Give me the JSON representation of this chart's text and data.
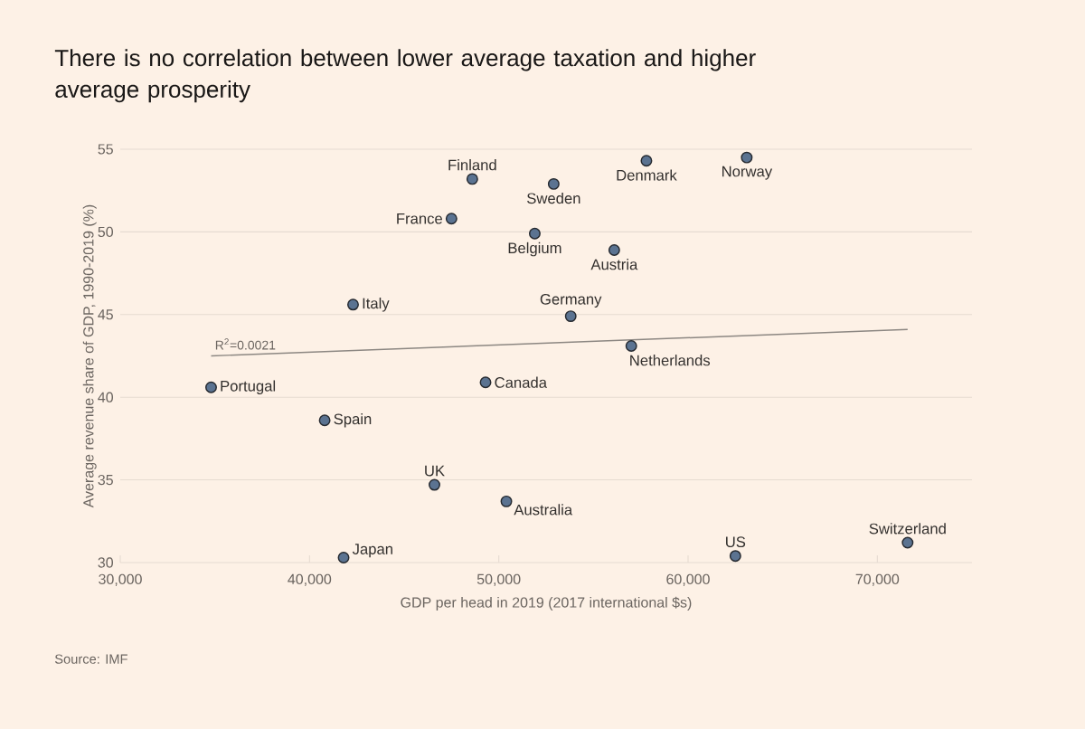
{
  "chart_data": {
    "type": "scatter",
    "title": "There is no correlation between lower average taxation and higher average prosperity",
    "xlabel": "GDP per head in 2019 (2017 international $s)",
    "ylabel": "Average revenue share of GDP, 1990-2019 (%)",
    "series": [
      {
        "color": "#5b7391",
        "marker": "circle",
        "x": [
          34800,
          40800,
          41800,
          42300,
          46600,
          47500,
          48600,
          49300,
          50400,
          51900,
          52900,
          53800,
          56100,
          57000,
          57800,
          62500,
          63100,
          71600
        ],
        "values": [
          40.6,
          38.6,
          30.3,
          45.6,
          34.7,
          50.8,
          53.2,
          40.9,
          33.7,
          49.9,
          52.9,
          44.9,
          48.9,
          43.1,
          54.3,
          30.4,
          54.5,
          31.2
        ]
      },
      {
        "type": "line",
        "color": "#8c8782",
        "line_style": "solid",
        "x": [
          34800,
          71600
        ],
        "values": [
          42.5,
          44.1
        ]
      }
    ],
    "xlim": [
      30000,
      75000
    ],
    "ylim": [
      30,
      55
    ],
    "xticks": [
      {
        "value": 30000,
        "label": "30,000"
      },
      {
        "value": 40000,
        "label": "40,000"
      },
      {
        "value": 50000,
        "label": "50,000"
      },
      {
        "value": 60000,
        "label": "60,000"
      },
      {
        "value": 70000,
        "label": "70,000"
      }
    ],
    "yticks": [
      30,
      35,
      40,
      45,
      50,
      55
    ],
    "grid": "y",
    "annotations": [
      {
        "text": "Portugal",
        "x": 34800,
        "y": 40.6
      },
      {
        "text": "Spain",
        "x": 40800,
        "y": 38.6
      },
      {
        "text": "Japan",
        "x": 41800,
        "y": 30.3
      },
      {
        "text": "Italy",
        "x": 42300,
        "y": 45.6
      },
      {
        "text": "UK",
        "x": 46600,
        "y": 34.7
      },
      {
        "text": "France",
        "x": 47500,
        "y": 50.8
      },
      {
        "text": "Finland",
        "x": 48600,
        "y": 53.2
      },
      {
        "text": "Canada",
        "x": 49300,
        "y": 40.9
      },
      {
        "text": "Australia",
        "x": 50400,
        "y": 33.7
      },
      {
        "text": "Belgium",
        "x": 51900,
        "y": 49.9
      },
      {
        "text": "Sweden",
        "x": 52900,
        "y": 52.9
      },
      {
        "text": "Germany",
        "x": 53800,
        "y": 44.9
      },
      {
        "text": "Austria",
        "x": 56100,
        "y": 48.9
      },
      {
        "text": "Netherlands",
        "x": 57000,
        "y": 43.1
      },
      {
        "text": "Denmark",
        "x": 57800,
        "y": 54.3
      },
      {
        "text": "US",
        "x": 62500,
        "y": 30.4
      },
      {
        "text": "Norway",
        "x": 63100,
        "y": 54.5
      },
      {
        "text": "Switzerland",
        "x": 71600,
        "y": 31.2
      },
      {
        "text": "R$^{2}$=0.0021",
        "x": 34800,
        "y": 42.5
      },
      "Source: IMF"
    ]
  }
}
